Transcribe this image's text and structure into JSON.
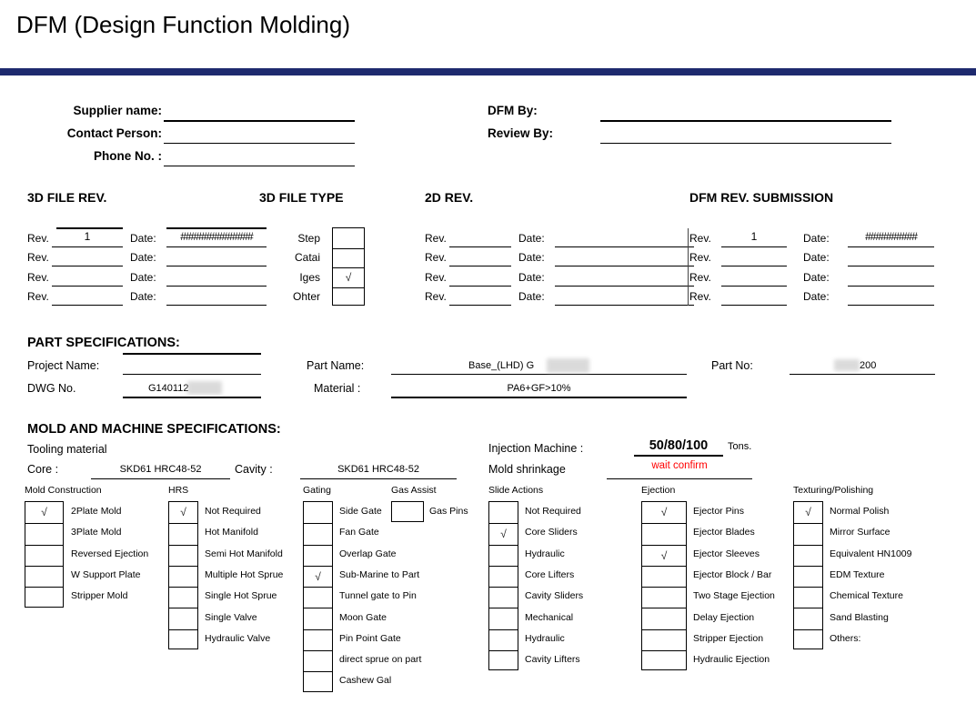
{
  "title": "DFM (Design Function Molding)",
  "colors": {
    "divider_bar": "#1e2a6e",
    "warning_text": "#ff0000"
  },
  "check_glyph": "√",
  "labels": {
    "rev": "Rev.",
    "date": "Date:"
  },
  "contact": {
    "supplier_label": "Supplier name:",
    "supplier_value": "",
    "contact_label": "Contact Person:",
    "contact_value": "",
    "phone_label": "Phone No. :",
    "phone_value": "",
    "dfm_by_label": "DFM By:",
    "dfm_by_value": "",
    "review_by_label": "Review By:",
    "review_by_value": ""
  },
  "rev_tables": {
    "file_rev_3d": {
      "title": "3D FILE  REV.",
      "rows": [
        {
          "rev": "1",
          "date": "##############"
        },
        {
          "rev": "",
          "date": ""
        },
        {
          "rev": "",
          "date": ""
        },
        {
          "rev": "",
          "date": ""
        }
      ]
    },
    "rev_2d": {
      "title": "2D REV.",
      "rows": [
        {
          "rev": "",
          "date": ""
        },
        {
          "rev": "",
          "date": ""
        },
        {
          "rev": "",
          "date": ""
        },
        {
          "rev": "",
          "date": ""
        }
      ]
    },
    "dfm_rev": {
      "title": "DFM  REV. SUBMISSION",
      "rows": [
        {
          "rev": "1",
          "date": "##########"
        },
        {
          "rev": "",
          "date": ""
        },
        {
          "rev": "",
          "date": ""
        },
        {
          "rev": "",
          "date": ""
        }
      ]
    }
  },
  "file_type_3d": {
    "title": "3D FILE TYPE",
    "options": [
      {
        "label": "Step",
        "checked": false
      },
      {
        "label": "Catai",
        "checked": false
      },
      {
        "label": "Iges",
        "checked": true
      },
      {
        "label": "Ohter",
        "checked": false
      }
    ]
  },
  "part_specifications": {
    "title": "PART SPECIFICATIONS:",
    "project_name_label": "Project Name:",
    "project_name_value": "",
    "dwg_no_label": "DWG No.",
    "dwg_no_value": "G140112",
    "part_name_label": "Part Name:",
    "part_name_value": "Base_(LHD) G",
    "material_label": "Material  :",
    "material_value": "PA6+GF>10%",
    "part_no_label": "Part No:",
    "part_no_value": "200"
  },
  "mold_machine": {
    "title": "MOLD AND MACHINE SPECIFICATIONS:",
    "tooling_material_label": "Tooling material",
    "core_label": "Core :",
    "core_value": "SKD61 HRC48-52",
    "cavity_label": "Cavity :",
    "cavity_value": "SKD61 HRC48-52",
    "injection_machine_label": "Injection Machine :",
    "injection_machine_value": "50/80/100",
    "tons_label": "Tons.",
    "mold_shrinkage_label": "Mold shrinkage",
    "mold_shrinkage_value": "wait confirm"
  },
  "checkbox_groups": [
    {
      "title": "Mold Construction",
      "items": [
        {
          "label": "2Plate Mold",
          "checked": true
        },
        {
          "label": "3Plate Mold",
          "checked": false
        },
        {
          "label": "Reversed Ejection",
          "checked": false
        },
        {
          "label": "W Support Plate",
          "checked": false
        },
        {
          "label": "Stripper Mold",
          "checked": false
        }
      ]
    },
    {
      "title": "HRS",
      "items": [
        {
          "label": "Not Required",
          "checked": true
        },
        {
          "label": "Hot Manifold",
          "checked": false
        },
        {
          "label": "Semi Hot Manifold",
          "checked": false
        },
        {
          "label": "Multiple Hot Sprue",
          "checked": false
        },
        {
          "label": "Single Hot Sprue",
          "checked": false
        },
        {
          "label": "Single Valve",
          "checked": false
        },
        {
          "label": "Hydraulic Valve",
          "checked": false
        }
      ]
    },
    {
      "title": "Gating",
      "items": [
        {
          "label": "Side Gate",
          "checked": false
        },
        {
          "label": "Fan Gate",
          "checked": false
        },
        {
          "label": "Overlap Gate",
          "checked": false
        },
        {
          "label": "Sub-Marine to Part",
          "checked": true
        },
        {
          "label": "Tunnel gate  to Pin",
          "checked": false
        },
        {
          "label": "Moon Gate",
          "checked": false
        },
        {
          "label": "Pin Point Gate",
          "checked": false
        },
        {
          "label": "direct sprue on part",
          "checked": false
        },
        {
          "label": "Cashew   Gal",
          "checked": false
        }
      ]
    },
    {
      "title": "Gas Assist",
      "items": [
        {
          "label": "Gas Pins",
          "checked": false
        }
      ]
    },
    {
      "title": "Slide Actions",
      "items": [
        {
          "label": "Not Required",
          "checked": false
        },
        {
          "label": "Core Sliders",
          "checked": true
        },
        {
          "label": "Hydraulic",
          "checked": false
        },
        {
          "label": "Core Lifters",
          "checked": false
        },
        {
          "label": "Cavity Sliders",
          "checked": false
        },
        {
          "label": "Mechanical",
          "checked": false
        },
        {
          "label": "Hydraulic",
          "checked": false
        },
        {
          "label": "Cavity Lifters",
          "checked": false
        }
      ]
    },
    {
      "title": "Ejection",
      "items": [
        {
          "label": "Ejector Pins",
          "checked": true
        },
        {
          "label": "Ejector Blades",
          "checked": false
        },
        {
          "label": "Ejector Sleeves",
          "checked": true
        },
        {
          "label": "Ejector Block / Bar",
          "checked": false
        },
        {
          "label": "Two Stage Ejection",
          "checked": false
        },
        {
          "label": "Delay Ejection",
          "checked": false
        },
        {
          "label": "Stripper Ejection",
          "checked": false
        },
        {
          "label": "Hydraulic Ejection",
          "checked": false
        }
      ]
    },
    {
      "title": "Texturing/Polishing",
      "items": [
        {
          "label": "Normal Polish",
          "checked": true
        },
        {
          "label": "Mirror Surface",
          "checked": false
        },
        {
          "label": "Equivalent HN1009",
          "checked": false
        },
        {
          "label": "EDM Texture",
          "checked": false
        },
        {
          "label": "Chemical Texture",
          "checked": false
        },
        {
          "label": "Sand Blasting",
          "checked": false
        },
        {
          "label": "Others:",
          "checked": false
        }
      ]
    }
  ]
}
